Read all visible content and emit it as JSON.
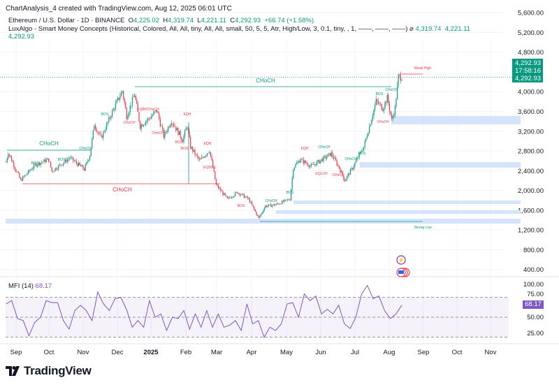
{
  "header": {
    "credit": "ChartAnalysis_4 created with TradingView.com, Aug 12, 2025 06:01 UTC"
  },
  "symbol": {
    "name": "Ethereum / U.S. Dollar · 1D · BINANCE",
    "o_label": "O",
    "open": "4,225.02",
    "h_label": "H",
    "high": "4,319.74",
    "l_label": "L",
    "low": "4,221.11",
    "c_label": "C",
    "close": "4,292.93",
    "change": "+66.74 (+1.58%)"
  },
  "indicator": {
    "name": "LuxAlgo - Smart Money Concepts (Historical, Colored, All, All, tiny, All, All, small, 50, 5, 5, Atr, High/Low, 3, 0.1, tiny, , 1, ——, ——, ——)",
    "icon": "eye-off-icon",
    "v1": "4,319.74",
    "v2": "4,221.11",
    "v3": "4,292.93"
  },
  "price_badge": {
    "price": "4,292.93",
    "countdown": "17:58:16",
    "price2": "4,292.93",
    "color": "#089981"
  },
  "mfi": {
    "title": "MFI (14)",
    "value": "68.17",
    "color": "#7e57c2",
    "axis": [
      "100.00",
      "75.00",
      "50.00",
      "25.00"
    ],
    "bands": [
      80,
      50,
      20
    ]
  },
  "logo": {
    "text": "TradingView"
  },
  "colors": {
    "up": "#089981",
    "down": "#f23645",
    "zone": "#d6e4fb"
  },
  "chart_data": [
    {
      "type": "candlestick",
      "scale": "linear",
      "ylim": [
        0,
        5800
      ],
      "y_ticks": [
        "5,600.00",
        "5,200.00",
        "4,800.00",
        "4,000.00",
        "3,600.00",
        "3,200.00",
        "2,800.00",
        "2,400.00",
        "2,000.00",
        "1,600.00",
        "1,200.00",
        "800.00",
        "400.00"
      ],
      "x_ticks": [
        "Sep",
        "Oct",
        "Nov",
        "Dec",
        "2025",
        "Feb",
        "Mar",
        "Apr",
        "May",
        "Jun",
        "Jul",
        "Aug",
        "Sep",
        "Oct",
        "Nov"
      ],
      "closes": [
        [
          "2024-08-23",
          2575
        ],
        [
          "2024-08-25",
          2770
        ],
        [
          "2024-09-05",
          2205
        ],
        [
          "2024-09-18",
          2520
        ],
        [
          "2024-09-30",
          2630
        ],
        [
          "2024-10-03",
          2390
        ],
        [
          "2024-10-19",
          2660
        ],
        [
          "2024-11-01",
          2430
        ],
        [
          "2024-11-06",
          2715
        ],
        [
          "2024-11-10",
          3340
        ],
        [
          "2024-11-16",
          3055
        ],
        [
          "2024-11-26",
          3590
        ],
        [
          "2024-12-05",
          4015
        ],
        [
          "2024-12-09",
          3510
        ],
        [
          "2024-12-16",
          3945
        ],
        [
          "2024-12-21",
          3310
        ],
        [
          "2024-12-30",
          3480
        ],
        [
          "2025-01-05",
          3620
        ],
        [
          "2025-01-11",
          3100
        ],
        [
          "2025-01-18",
          3410
        ],
        [
          "2025-01-28",
          3030
        ],
        [
          "2025-02-01",
          3310
        ],
        [
          "2025-02-04",
          2885
        ],
        [
          "2025-02-12",
          2600
        ],
        [
          "2025-02-21",
          2815
        ],
        [
          "2025-02-27",
          2110
        ],
        [
          "2025-03-09",
          1825
        ],
        [
          "2025-03-18",
          1965
        ],
        [
          "2025-03-28",
          1825
        ],
        [
          "2025-04-06",
          1440
        ],
        [
          "2025-04-12",
          1685
        ],
        [
          "2025-04-21",
          1710
        ],
        [
          "2025-05-04",
          1825
        ],
        [
          "2025-05-07",
          2460
        ],
        [
          "2025-05-13",
          2630
        ],
        [
          "2025-05-23",
          2490
        ],
        [
          "2025-05-29",
          2575
        ],
        [
          "2025-06-10",
          2745
        ],
        [
          "2025-06-17",
          2460
        ],
        [
          "2025-06-22",
          2205
        ],
        [
          "2025-06-29",
          2460
        ],
        [
          "2025-07-09",
          2885
        ],
        [
          "2025-07-15",
          3380
        ],
        [
          "2025-07-20",
          3805
        ],
        [
          "2025-07-26",
          3665
        ],
        [
          "2025-07-30",
          3875
        ],
        [
          "2025-08-03",
          3420
        ],
        [
          "2025-08-06",
          3665
        ],
        [
          "2025-08-09",
          4300
        ],
        [
          "2025-08-12",
          4292.93
        ]
      ],
      "annotations": [
        "CHoCH",
        "CHoCH",
        "CHoCH",
        "Weak High",
        "Strong Low",
        "BOS",
        "CHoCH",
        "BOS",
        "BOS",
        "BOS",
        "EQH",
        "EQH",
        "BOS",
        "BOS",
        "CHoCH",
        "EQBHCHoCH",
        "CHoCH",
        "EQBOS",
        "BOS",
        "CHoCH",
        "BOS",
        "EQH",
        "CHoCH",
        "EQLCH",
        "CHoCH",
        "CHoCH",
        "BOS",
        "BOS",
        "CHoCH",
        "CHoCH"
      ]
    },
    {
      "type": "line",
      "name": "MFI (14)",
      "ylim": [
        0,
        100
      ],
      "start": "2024-08-23",
      "end": "2025-08-12",
      "values": [
        70,
        75,
        48,
        45,
        22,
        42,
        50,
        75,
        72,
        72,
        45,
        32,
        60,
        68,
        60,
        45,
        88,
        70,
        60,
        78,
        80,
        62,
        35,
        45,
        35,
        75,
        50,
        55,
        30,
        50,
        48,
        60,
        32,
        55,
        35,
        60,
        35,
        55,
        35,
        38,
        45,
        30,
        70,
        40,
        45,
        20,
        35,
        30,
        40,
        70,
        72,
        50,
        85,
        75,
        82,
        55,
        62,
        55,
        68,
        40,
        33,
        50,
        85,
        98,
        78,
        82,
        60,
        48,
        55,
        68.17
      ]
    }
  ]
}
